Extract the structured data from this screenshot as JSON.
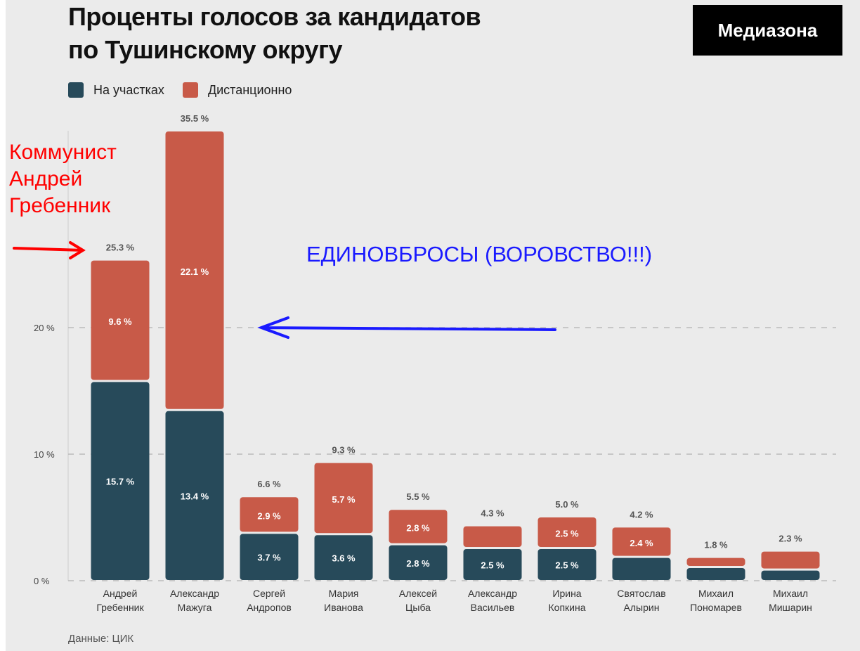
{
  "chart_data": {
    "type": "bar",
    "stacked": true,
    "title": "Проценты голосов за кандидатов по Тушинскому округу",
    "title_lines": [
      "Проценты голосов за кандидатов",
      "по Тушинскому округу"
    ],
    "categories": [
      [
        "Андрей",
        "Гребенник"
      ],
      [
        "Александр",
        "Мажуга"
      ],
      [
        "Сергей",
        "Андропов"
      ],
      [
        "Мария",
        "Иванова"
      ],
      [
        "Алексей",
        "Цыба"
      ],
      [
        "Александр",
        "Васильев"
      ],
      [
        "Ирина",
        "Копкина"
      ],
      [
        "Святослав",
        "Алырин"
      ],
      [
        "Михаил",
        "Пономарев"
      ],
      [
        "Михаил",
        "Мишарин"
      ]
    ],
    "series": [
      {
        "name": "На участках",
        "color": "#274a5a",
        "values": [
          15.7,
          13.4,
          3.7,
          3.6,
          2.8,
          2.5,
          2.5,
          1.8,
          1.0,
          0.8
        ],
        "labels": [
          "15.7 %",
          "13.4 %",
          "3.7 %",
          "3.6 %",
          "2.8 %",
          "2.5 %",
          "2.5 %",
          "",
          "",
          ""
        ]
      },
      {
        "name": "Дистанционно",
        "color": "#c85a48",
        "values": [
          9.6,
          22.1,
          2.9,
          5.7,
          2.8,
          1.8,
          2.5,
          2.4,
          0.8,
          1.5
        ],
        "labels": [
          "9.6 %",
          "22.1 %",
          "2.9 %",
          "5.7 %",
          "2.8 %",
          "",
          "2.5 %",
          "2.4 %",
          "",
          ""
        ]
      }
    ],
    "totals": [
      "25.3 %",
      "35.5 %",
      "6.6 %",
      "9.3 %",
      "5.5 %",
      "4.3 %",
      "5.0 %",
      "4.2 %",
      "1.8 %",
      "2.3 %"
    ],
    "yticks": [
      0,
      10,
      20
    ],
    "ytick_labels": [
      "0 %",
      "10 %",
      "20 %"
    ],
    "ylim": [
      0,
      36
    ],
    "grid": "dashed horizontal",
    "legend_position": "top-left"
  },
  "logo": "Медиазона",
  "source": "Данные: ЦИК",
  "annotations": {
    "red_text": [
      "Коммунист",
      "Андрей",
      "Гребенник"
    ],
    "blue_text": "ЕДИНОВБРОСЫ (ВОРОВСТВО!!!)",
    "red_color": "#ff0000",
    "blue_color": "#1a1aff"
  }
}
